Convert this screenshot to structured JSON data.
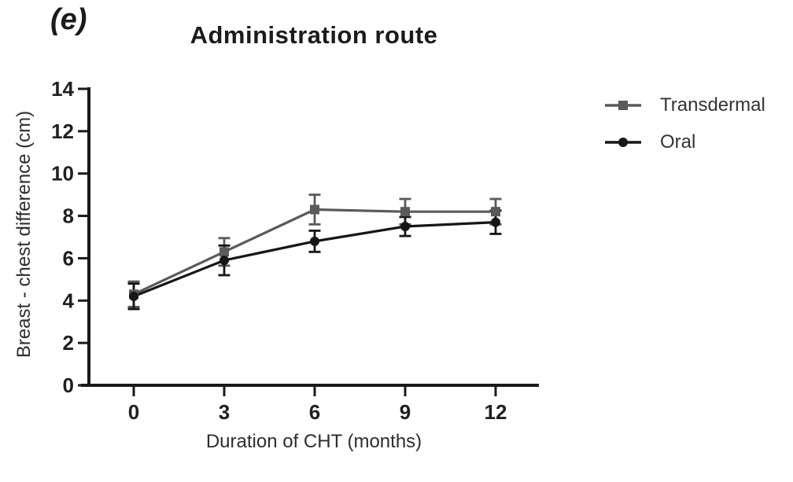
{
  "figure": {
    "panel_label": "(e)"
  },
  "legend": {
    "items": [
      {
        "label": "Transdermal"
      },
      {
        "label": "Oral"
      }
    ]
  },
  "colors": {
    "axis": "#1a1a1a",
    "tick_text": "#1f1f1f",
    "transdermal": "#5a5a5a",
    "oral": "#161616"
  },
  "chart_data": {
    "type": "line",
    "title": "Administration route",
    "xlabel": "Duration of CHT (months)",
    "ylabel": "Breast - chest difference (cm)",
    "x": [
      0,
      3,
      6,
      9,
      12
    ],
    "xticks": [
      0,
      3,
      6,
      9,
      12
    ],
    "yticks": [
      0,
      2,
      4,
      6,
      8,
      10,
      12,
      14
    ],
    "ylim": [
      0,
      14
    ],
    "xlim": [
      0,
      12
    ],
    "grid": false,
    "error_bars": true,
    "legend_position": "right",
    "series": [
      {
        "name": "Transdermal",
        "marker": "square",
        "color": "#5a5a5a",
        "values": [
          4.3,
          6.3,
          8.3,
          8.2,
          8.2
        ],
        "error": [
          0.6,
          0.65,
          0.7,
          0.6,
          0.6
        ]
      },
      {
        "name": "Oral",
        "marker": "circle",
        "color": "#161616",
        "values": [
          4.2,
          5.9,
          6.8,
          7.5,
          7.7
        ],
        "error": [
          0.6,
          0.7,
          0.5,
          0.45,
          0.55
        ]
      }
    ]
  }
}
